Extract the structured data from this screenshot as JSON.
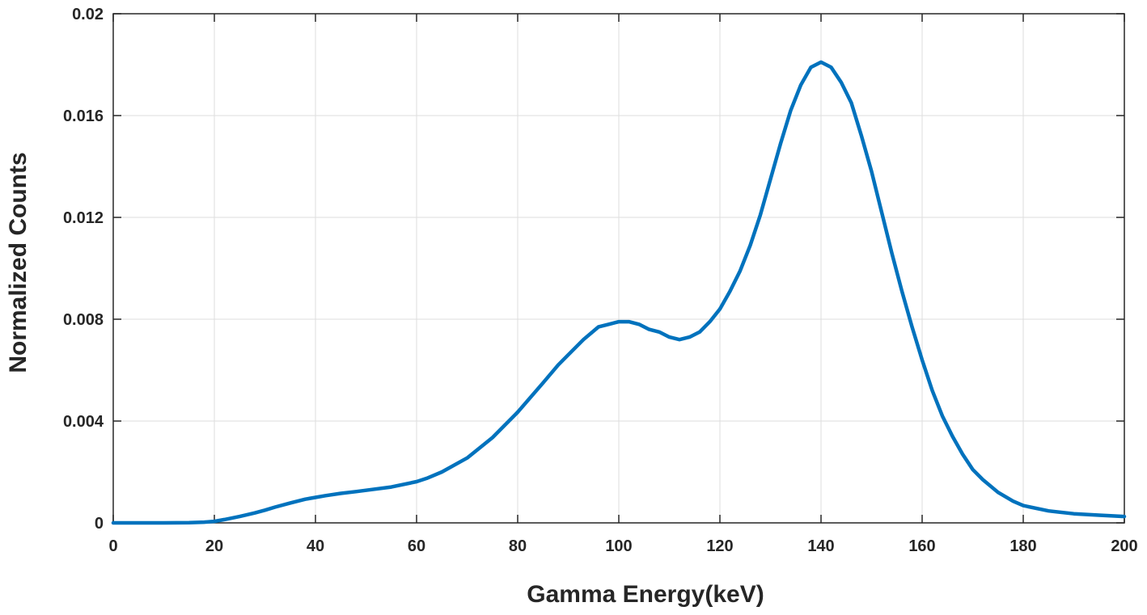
{
  "chart_data": {
    "type": "line",
    "xlabel": "Gamma Energy(keV)",
    "ylabel": "Normalized Counts",
    "xlim": [
      0,
      200
    ],
    "ylim": [
      0,
      0.02
    ],
    "grid": true,
    "line_color": "#0072BD",
    "x_ticks": [
      "0",
      "20",
      "40",
      "60",
      "80",
      "100",
      "120",
      "140",
      "160",
      "180",
      "200"
    ],
    "y_ticks": [
      "0",
      "0.004",
      "0.008",
      "0.012",
      "0.016",
      "0.02"
    ],
    "series": [
      {
        "x": [
          0,
          5,
          10,
          15,
          18,
          20,
          22,
          25,
          28,
          30,
          32,
          35,
          38,
          40,
          42,
          45,
          48,
          50,
          55,
          60,
          62,
          65,
          70,
          75,
          80,
          85,
          88,
          90,
          93,
          96,
          98,
          100,
          102,
          104,
          106,
          108,
          110,
          112,
          114,
          116,
          118,
          120,
          122,
          124,
          126,
          128,
          130,
          132,
          134,
          136,
          138,
          140,
          142,
          144,
          146,
          148,
          150,
          152,
          154,
          156,
          158,
          160,
          162,
          164,
          166,
          168,
          170,
          172,
          175,
          178,
          180,
          185,
          190,
          195,
          200
        ],
        "y": [
          0,
          0,
          0,
          1e-05,
          3e-05,
          6e-05,
          0.00013,
          0.00025,
          0.00039,
          0.0005,
          0.00062,
          0.00078,
          0.00093,
          0.001,
          0.00107,
          0.00116,
          0.00123,
          0.00128,
          0.00141,
          0.00162,
          0.00175,
          0.002,
          0.00255,
          0.00335,
          0.00435,
          0.0055,
          0.0062,
          0.0066,
          0.0072,
          0.0077,
          0.0078,
          0.0079,
          0.0079,
          0.0078,
          0.0076,
          0.0075,
          0.0073,
          0.0072,
          0.0073,
          0.0075,
          0.0079,
          0.0084,
          0.0091,
          0.0099,
          0.0109,
          0.0121,
          0.0135,
          0.0149,
          0.0162,
          0.0172,
          0.0179,
          0.0181,
          0.0179,
          0.0173,
          0.0165,
          0.0152,
          0.0138,
          0.0122,
          0.0106,
          0.0091,
          0.0077,
          0.0064,
          0.0052,
          0.0042,
          0.0034,
          0.0027,
          0.0021,
          0.0017,
          0.0012,
          0.00085,
          0.00068,
          0.00047,
          0.00036,
          0.0003,
          0.00025
        ]
      }
    ]
  }
}
